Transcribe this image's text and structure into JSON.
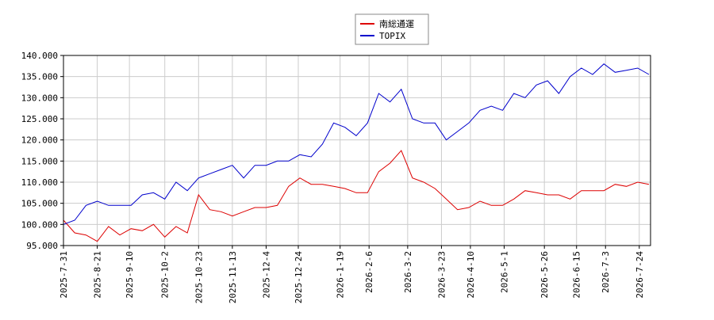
{
  "chart_data": {
    "type": "line",
    "x": [
      "2025-7-31",
      "2025-8-7",
      "2025-8-14",
      "2025-8-21",
      "2025-8-28",
      "2025-9-4",
      "2025-9-11",
      "2025-9-18",
      "2025-9-25",
      "2025-10-2",
      "2025-10-9",
      "2025-10-16",
      "2025-10-23",
      "2025-10-30",
      "2025-11-6",
      "2025-11-13",
      "2025-11-20",
      "2025-11-27",
      "2025-12-4",
      "2025-12-11",
      "2025-12-18",
      "2025-12-25",
      "2026-1-1",
      "2026-1-8",
      "2026-1-15",
      "2026-1-22",
      "2026-1-29",
      "2026-2-5",
      "2026-2-12",
      "2026-2-19",
      "2026-2-26",
      "2026-3-5",
      "2026-3-12",
      "2026-3-19",
      "2026-3-26",
      "2026-4-2",
      "2026-4-9",
      "2026-4-16",
      "2026-4-23",
      "2026-4-30",
      "2026-5-7",
      "2026-5-14",
      "2026-5-21",
      "2026-5-28",
      "2026-6-4",
      "2026-6-11",
      "2026-6-18",
      "2026-6-25",
      "2026-7-2",
      "2026-7-9",
      "2026-7-16",
      "2026-7-23",
      "2026-7-30"
    ],
    "series": [
      {
        "name": "南総通運",
        "color": "#dd0000",
        "values": [
          101,
          98,
          97.5,
          96,
          99.5,
          97.5,
          99,
          98.5,
          100,
          97,
          99.5,
          98,
          107,
          103.5,
          103,
          102,
          103,
          104,
          104,
          104.5,
          109,
          111,
          109.5,
          109.5,
          109,
          108.5,
          107.5,
          107.5,
          112.5,
          114.5,
          117.5,
          111,
          110,
          108.5,
          106,
          103.5,
          104,
          105.5,
          104.5,
          104.5,
          106,
          108,
          107.5,
          107,
          107,
          106,
          108,
          108,
          108,
          109.5,
          109,
          110,
          109.5
        ]
      },
      {
        "name": "TOPIX",
        "color": "#0000cc",
        "values": [
          100,
          101,
          104.5,
          105.5,
          104.5,
          104.5,
          104.5,
          107,
          107.5,
          106,
          110,
          108,
          111,
          112,
          113,
          114,
          111,
          114,
          114,
          115,
          115,
          116.5,
          116,
          119,
          124,
          123,
          121,
          124,
          131,
          129,
          132,
          125,
          124,
          124,
          120,
          122,
          124,
          127,
          128,
          127,
          131,
          130,
          133,
          134,
          131,
          135,
          137,
          135.5,
          138,
          136,
          136.5,
          137,
          135.5
        ]
      }
    ],
    "xlim": [
      "2025-7-31",
      "2026-7-31"
    ],
    "xticks": [
      "2025-7-31",
      "2025-8-21",
      "2025-9-10",
      "2025-10-2",
      "2025-10-23",
      "2025-11-13",
      "2025-12-4",
      "2025-12-24",
      "2026-1-19",
      "2026-2-6",
      "2026-3-2",
      "2026-3-23",
      "2026-4-10",
      "2026-5-1",
      "2026-5-26",
      "2026-6-15",
      "2026-7-3",
      "2026-7-24"
    ],
    "ylim": [
      95,
      140
    ],
    "yticks": [
      {
        "value": 95,
        "label": "95.000"
      },
      {
        "value": 100,
        "label": "100.000"
      },
      {
        "value": 105,
        "label": "105.000"
      },
      {
        "value": 110,
        "label": "110.000"
      },
      {
        "value": 115,
        "label": "115.000"
      },
      {
        "value": 120,
        "label": "120.000"
      },
      {
        "value": 125,
        "label": "125.000"
      },
      {
        "value": 130,
        "label": "130.000"
      },
      {
        "value": 135,
        "label": "135.000"
      },
      {
        "value": 140,
        "label": "140.000"
      }
    ],
    "grid": true
  }
}
